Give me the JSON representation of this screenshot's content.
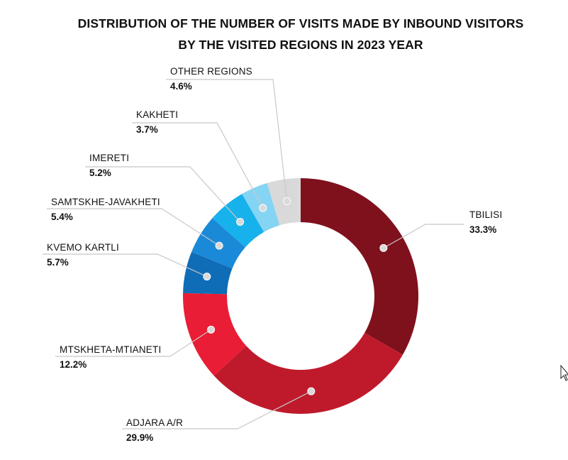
{
  "chart_data": {
    "type": "pie",
    "variant": "donut",
    "title": "DISTRIBUTION OF THE NUMBER OF VISITS MADE BY INBOUND VISITORS",
    "subtitle": "BY THE VISITED REGIONS IN 2023 YEAR",
    "unit": "%",
    "slices": [
      {
        "label": "TBILISI",
        "value": 33.3,
        "display": "33.3%",
        "color": "#7f111d"
      },
      {
        "label": "ADJARA A/R",
        "value": 29.9,
        "display": "29.9%",
        "color": "#bf1a2b"
      },
      {
        "label": "MTSKHETA-MTIANETI",
        "value": 12.2,
        "display": "12.2%",
        "color": "#e91d35"
      },
      {
        "label": "KVEMO KARTLI",
        "value": 5.7,
        "display": "5.7%",
        "color": "#0f6cb6"
      },
      {
        "label": "SAMTSKHE-JAVAKHETI",
        "value": 5.4,
        "display": "5.4%",
        "color": "#1a8ad8"
      },
      {
        "label": "IMERETI",
        "value": 5.2,
        "display": "5.2%",
        "color": "#17b2ec"
      },
      {
        "label": "KAKHETI",
        "value": 3.7,
        "display": "3.7%",
        "color": "#85d4f3"
      },
      {
        "label": "OTHER REGIONS",
        "value": 4.6,
        "display": "4.6%",
        "color": "#d9d9d9"
      }
    ],
    "start": "top",
    "direction": "clockwise",
    "legend": "none",
    "data_labels": "outside-with-leader-lines"
  }
}
